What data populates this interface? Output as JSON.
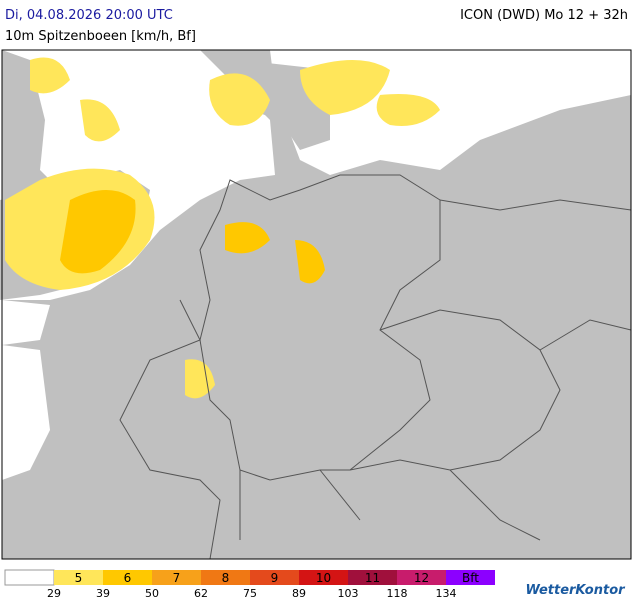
{
  "header": {
    "left": "Di, 04.08.2026 20:00 UTC",
    "right": "ICON (DWD) Mo 12 + 32h",
    "subtitle": "10m Spitzenboeen [km/h, Bf]"
  },
  "legend": {
    "bands": [
      {
        "label": "5",
        "color": "#ffe65a"
      },
      {
        "label": "6",
        "color": "#ffc800"
      },
      {
        "label": "7",
        "color": "#f7a11a"
      },
      {
        "label": "8",
        "color": "#f07814"
      },
      {
        "label": "9",
        "color": "#e44a1c"
      },
      {
        "label": "10",
        "color": "#d41414"
      },
      {
        "label": "11",
        "color": "#a0103c"
      },
      {
        "label": "12",
        "color": "#c81c6c"
      },
      {
        "label": "Bft",
        "color": "#8c00ff"
      }
    ],
    "speeds": [
      29,
      39,
      50,
      62,
      75,
      89,
      103,
      118,
      134
    ]
  },
  "logo": "WetterKontor"
}
